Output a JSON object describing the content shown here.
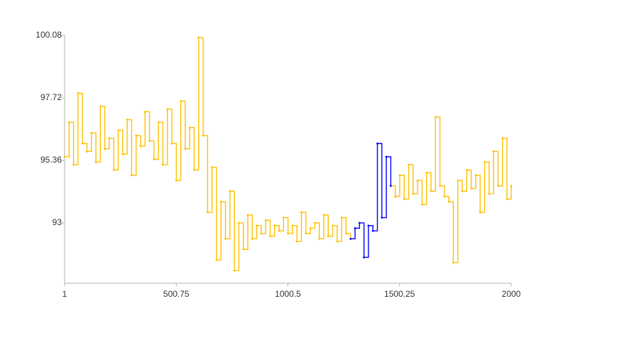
{
  "chart_data": {
    "type": "line",
    "step": true,
    "x": [
      1,
      21,
      41,
      61,
      81,
      101,
      121,
      141,
      161,
      181,
      201,
      221,
      241,
      261,
      281,
      301,
      321,
      341,
      361,
      381,
      401,
      421,
      441,
      461,
      481,
      501,
      521,
      541,
      561,
      581,
      601,
      621,
      641,
      661,
      681,
      701,
      721,
      741,
      761,
      781,
      801,
      821,
      841,
      861,
      881,
      901,
      921,
      941,
      961,
      981,
      1001,
      1021,
      1041,
      1061,
      1081,
      1101,
      1121,
      1141,
      1161,
      1181,
      1201,
      1221,
      1241,
      1261,
      1281,
      1301,
      1321,
      1341,
      1361,
      1381,
      1401,
      1421,
      1441,
      1461,
      1481,
      1501,
      1521,
      1541,
      1561,
      1581,
      1601,
      1621,
      1641,
      1661,
      1681,
      1701,
      1721,
      1741,
      1761,
      1781,
      1801,
      1821,
      1841,
      1861,
      1881,
      1901,
      1921,
      1941,
      1961,
      1981,
      2000
    ],
    "series": [
      {
        "color": "#ffc000",
        "values": [
          95.5,
          96.8,
          95.2,
          97.9,
          96.0,
          95.7,
          96.4,
          95.3,
          97.4,
          95.8,
          96.2,
          95.0,
          96.5,
          95.6,
          96.9,
          94.8,
          96.3,
          95.9,
          97.2,
          96.1,
          95.4,
          96.8,
          95.2,
          97.3,
          96.0,
          94.6,
          97.6,
          95.8,
          96.6,
          95.0,
          100.0,
          96.3,
          93.4,
          95.1,
          91.6,
          93.8,
          92.4,
          94.2,
          91.2,
          93.0,
          92.0,
          93.3,
          92.4,
          92.9,
          92.6,
          93.1,
          92.5,
          92.9,
          92.7,
          93.2,
          92.6,
          92.9,
          92.3,
          93.4,
          92.6,
          92.8,
          93.0,
          92.4,
          93.3,
          92.5,
          92.9,
          92.3,
          93.2,
          92.6,
          92.4,
          null,
          null,
          null,
          null,
          null,
          null,
          null,
          null,
          94.4,
          94.0,
          94.8,
          93.9,
          95.2,
          94.1,
          94.6,
          93.7,
          94.9,
          94.2,
          97.0,
          94.4,
          94.0,
          93.8,
          91.5,
          94.6,
          94.2,
          95.0,
          94.3,
          94.8,
          93.4,
          95.3,
          94.1,
          95.7,
          94.4,
          96.2,
          93.9,
          94.4
        ]
      },
      {
        "color": "#0000ff",
        "values": [
          null,
          null,
          null,
          null,
          null,
          null,
          null,
          null,
          null,
          null,
          null,
          null,
          null,
          null,
          null,
          null,
          null,
          null,
          null,
          null,
          null,
          null,
          null,
          null,
          null,
          null,
          null,
          null,
          null,
          null,
          null,
          null,
          null,
          null,
          null,
          null,
          null,
          null,
          null,
          null,
          null,
          null,
          null,
          null,
          null,
          null,
          null,
          null,
          null,
          null,
          null,
          null,
          null,
          null,
          null,
          null,
          null,
          null,
          null,
          null,
          null,
          null,
          null,
          null,
          92.4,
          92.8,
          93.0,
          91.7,
          92.9,
          92.7,
          96.0,
          93.2,
          95.5,
          94.4,
          null,
          null,
          null,
          null,
          null,
          null,
          null,
          null,
          null,
          null,
          null,
          null,
          null,
          null,
          null,
          null,
          null,
          null,
          null,
          null,
          null,
          null,
          null,
          null,
          null,
          null,
          null
        ]
      }
    ],
    "xlim": [
      1,
      2000
    ],
    "ylim": [
      90.72,
      100.08
    ],
    "xticks": [
      1,
      500.75,
      1000.5,
      1500.25,
      2000
    ],
    "yticks": [
      93,
      95.36,
      97.72,
      100.08
    ]
  }
}
